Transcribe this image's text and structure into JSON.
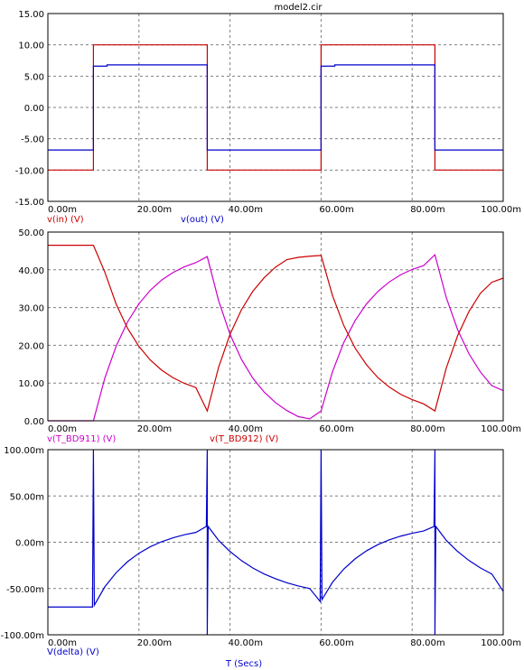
{
  "chart_data": [
    {
      "type": "line",
      "title": "model2.cir",
      "x_tick_labels": [
        "0.00m",
        "20.00m",
        "40.00m",
        "60.00m",
        "80.00m",
        "100.00m"
      ],
      "y_tick_labels": [
        "15.00",
        "10.00",
        "5.00",
        "0.00",
        "-5.00",
        "-10.00",
        "-15.00"
      ],
      "xlim": [
        0,
        100
      ],
      "ylim": [
        -15,
        15
      ],
      "x_unit": "ms",
      "grid": true,
      "series": [
        {
          "name": "v(in) (V)",
          "color": "#cc0000",
          "points": [
            [
              0,
              -10
            ],
            [
              10,
              -10
            ],
            [
              10,
              10
            ],
            [
              35,
              10
            ],
            [
              35,
              -10
            ],
            [
              60,
              -10
            ],
            [
              60,
              10
            ],
            [
              85,
              10
            ],
            [
              85,
              -10
            ],
            [
              100,
              -10
            ]
          ]
        },
        {
          "name": "v(out) (V)",
          "color": "#0000cc",
          "points": [
            [
              0,
              -6.8
            ],
            [
              10,
              -6.8
            ],
            [
              10,
              6.6
            ],
            [
              13,
              6.6
            ],
            [
              13,
              6.8
            ],
            [
              35,
              6.8
            ],
            [
              35,
              -6.8
            ],
            [
              60,
              -6.8
            ],
            [
              60,
              6.6
            ],
            [
              63,
              6.6
            ],
            [
              63,
              6.8
            ],
            [
              85,
              6.8
            ],
            [
              85,
              -6.8
            ],
            [
              100,
              -6.8
            ]
          ]
        }
      ]
    },
    {
      "type": "line",
      "x_tick_labels": [
        "0.00m",
        "20.00m",
        "40.00m",
        "60.00m",
        "80.00m",
        "100.00m"
      ],
      "y_tick_labels": [
        "50.00",
        "40.00",
        "30.00",
        "20.00",
        "10.00",
        "0.00"
      ],
      "xlim": [
        0,
        100
      ],
      "ylim": [
        0,
        50
      ],
      "x_unit": "ms",
      "grid": true,
      "series": [
        {
          "name": "v(T_BD911) (V)",
          "color": "#cc00cc",
          "points": [
            [
              0,
              0
            ],
            [
              10,
              0
            ],
            [
              12.5,
              11.3
            ],
            [
              15,
              19.8
            ],
            [
              17.5,
              26.2
            ],
            [
              20,
              31.0
            ],
            [
              22.5,
              34.6
            ],
            [
              25,
              37.3
            ],
            [
              27.5,
              39.3
            ],
            [
              30,
              40.8
            ],
            [
              32.5,
              41.9
            ],
            [
              35,
              43.5
            ],
            [
              37.5,
              31.8
            ],
            [
              40,
              22.9
            ],
            [
              42.5,
              16.3
            ],
            [
              45,
              11.3
            ],
            [
              47.5,
              7.6
            ],
            [
              50,
              4.8
            ],
            [
              52.5,
              2.7
            ],
            [
              55,
              1.1
            ],
            [
              57.5,
              0.5
            ],
            [
              60,
              2.6
            ],
            [
              62.5,
              13.0
            ],
            [
              65,
              20.8
            ],
            [
              67.5,
              26.6
            ],
            [
              70,
              31.0
            ],
            [
              72.5,
              34.3
            ],
            [
              75,
              36.8
            ],
            [
              77.5,
              38.7
            ],
            [
              80,
              40.1
            ],
            [
              82.5,
              41.1
            ],
            [
              85,
              44.0
            ],
            [
              87.5,
              32.6
            ],
            [
              90,
              24.1
            ],
            [
              92.5,
              17.7
            ],
            [
              95,
              12.9
            ],
            [
              97.5,
              9.3
            ],
            [
              100,
              8.0
            ]
          ]
        },
        {
          "name": "v(T_BD912) (V)",
          "color": "#cc0000",
          "points": [
            [
              0,
              46.5
            ],
            [
              10,
              46.5
            ],
            [
              12.5,
              39.4
            ],
            [
              15,
              30.9
            ],
            [
              17.5,
              24.5
            ],
            [
              20,
              19.7
            ],
            [
              22.5,
              16.1
            ],
            [
              25,
              13.4
            ],
            [
              27.5,
              11.4
            ],
            [
              30,
              9.9
            ],
            [
              32.5,
              8.8
            ],
            [
              35,
              2.6
            ],
            [
              37.5,
              14.2
            ],
            [
              40,
              22.9
            ],
            [
              42.5,
              29.4
            ],
            [
              45,
              34.3
            ],
            [
              47.5,
              37.9
            ],
            [
              50,
              40.7
            ],
            [
              52.5,
              42.7
            ],
            [
              55,
              43.3
            ],
            [
              57.5,
              43.6
            ],
            [
              60,
              43.8
            ],
            [
              62.5,
              33.2
            ],
            [
              65,
              25.2
            ],
            [
              67.5,
              19.2
            ],
            [
              70,
              14.8
            ],
            [
              72.5,
              11.4
            ],
            [
              75,
              8.9
            ],
            [
              77.5,
              7.0
            ],
            [
              80,
              5.6
            ],
            [
              82.5,
              4.5
            ],
            [
              85,
              2.6
            ],
            [
              87.5,
              14.0
            ],
            [
              90,
              22.6
            ],
            [
              92.5,
              29.0
            ],
            [
              95,
              33.8
            ],
            [
              97.5,
              36.7
            ],
            [
              100,
              37.8
            ]
          ]
        }
      ]
    },
    {
      "type": "line",
      "x_tick_labels": [
        "0.00m",
        "20.00m",
        "40.00m",
        "60.00m",
        "80.00m",
        "100.00m"
      ],
      "y_tick_labels": [
        "100.00m",
        "50.00m",
        "0.00m",
        "-50.00m",
        "-100.00m"
      ],
      "xlim": [
        0,
        100
      ],
      "ylim": [
        -100,
        100
      ],
      "x_unit": "ms",
      "y_unit": "mV",
      "xlabel": "T (Secs)",
      "grid": true,
      "series": [
        {
          "name": "V(delta) (V)",
          "color": "#0000cc",
          "points": [
            [
              0,
              -70
            ],
            [
              9.8,
              -70
            ],
            [
              10,
              100
            ],
            [
              10.2,
              -68
            ],
            [
              12.5,
              -48.2
            ],
            [
              15,
              -32.9
            ],
            [
              17.5,
              -21.0
            ],
            [
              20,
              -11.9
            ],
            [
              22.5,
              -4.8
            ],
            [
              25,
              0.6
            ],
            [
              27.5,
              4.8
            ],
            [
              30,
              8.1
            ],
            [
              32.5,
              10.6
            ],
            [
              34.8,
              17
            ],
            [
              35,
              100
            ],
            [
              35,
              -100
            ],
            [
              35.2,
              17
            ],
            [
              37.5,
              2.0
            ],
            [
              40,
              -10.0
            ],
            [
              42.5,
              -19.8
            ],
            [
              45,
              -27.8
            ],
            [
              47.5,
              -34.3
            ],
            [
              50,
              -39.5
            ],
            [
              52.5,
              -43.8
            ],
            [
              55,
              -47.3
            ],
            [
              57.5,
              -50.0
            ],
            [
              59.8,
              -64
            ],
            [
              60,
              100
            ],
            [
              60.2,
              -62
            ],
            [
              62.5,
              -43.3
            ],
            [
              65,
              -28.9
            ],
            [
              67.5,
              -17.8
            ],
            [
              70,
              -9.2
            ],
            [
              72.5,
              -2.5
            ],
            [
              75,
              2.6
            ],
            [
              77.5,
              6.6
            ],
            [
              80,
              9.7
            ],
            [
              82.5,
              12.1
            ],
            [
              84.8,
              17
            ],
            [
              85,
              100
            ],
            [
              85,
              -100
            ],
            [
              85.2,
              17
            ],
            [
              87.5,
              2.0
            ],
            [
              90,
              -10.0
            ],
            [
              92.5,
              -19.8
            ],
            [
              95,
              -27.8
            ],
            [
              97.5,
              -34.3
            ],
            [
              100,
              -53
            ]
          ]
        }
      ]
    }
  ]
}
